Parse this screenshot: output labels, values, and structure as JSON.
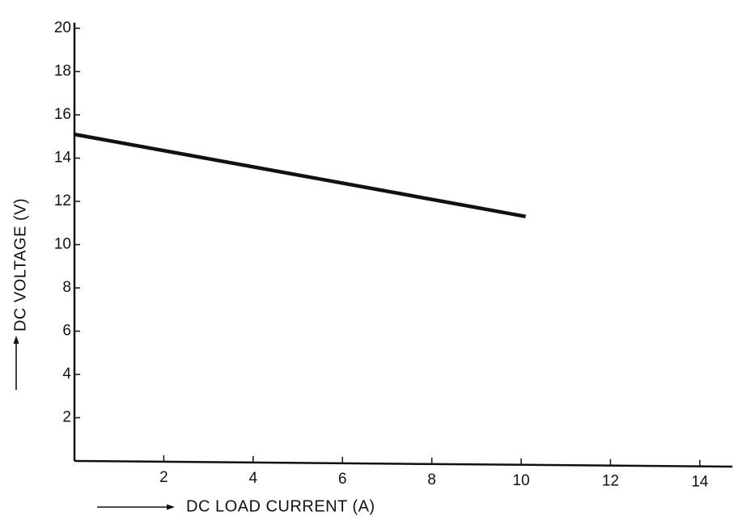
{
  "chart_data": {
    "type": "line",
    "title": "",
    "xlabel": "DC LOAD CURRENT (A)",
    "ylabel": "DC VOLTAGE (V)",
    "xlim": [
      0,
      15
    ],
    "ylim": [
      0,
      20
    ],
    "x_ticks": [
      2,
      4,
      6,
      8,
      10,
      12,
      14
    ],
    "y_ticks": [
      2,
      4,
      6,
      8,
      10,
      12,
      14,
      16,
      18,
      20
    ],
    "grid": false,
    "legend": "none",
    "series": [
      {
        "x": [
          0,
          10.1
        ],
        "y": [
          15.1,
          11.3
        ]
      }
    ]
  },
  "colors": {
    "ink": "#111111",
    "background": "#ffffff"
  }
}
